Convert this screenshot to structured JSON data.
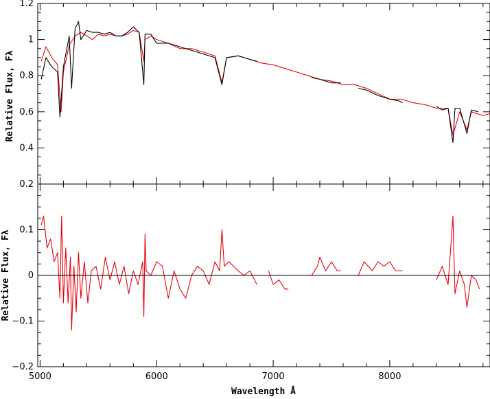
{
  "chart_data": [
    {
      "type": "line",
      "panel": "top",
      "ylabel": "Relative Flux, Fλ",
      "xlabel": "",
      "xlim": [
        4980,
        8860
      ],
      "ylim": [
        0.2,
        1.2
      ],
      "x_ticks": [
        5000,
        6000,
        7000,
        8000
      ],
      "y_ticks": [
        0.2,
        0.4,
        0.6,
        0.8,
        1,
        1.2
      ],
      "y_tick_labels": [
        "0.2",
        "0.4",
        "0.6",
        "0.8",
        "1",
        "1.2"
      ],
      "series": [
        {
          "color": "#e8000b",
          "x": [
            5010,
            5050,
            5100,
            5150,
            5180,
            5200,
            5250,
            5300,
            5350,
            5400,
            5450,
            5500,
            5550,
            5600,
            5650,
            5700,
            5750,
            5800,
            5850,
            5890,
            5900,
            5950,
            6000,
            6100,
            6200,
            6300,
            6400,
            6500,
            6560,
            6600,
            6700,
            6800,
            6900,
            7000,
            7100,
            7200,
            7300,
            7400,
            7500,
            7600,
            7700,
            7800,
            7900,
            8000,
            8100,
            8200,
            8300,
            8400,
            8500,
            8542,
            8600,
            8662,
            8700,
            8800,
            8860
          ],
          "y": [
            0.88,
            0.96,
            0.9,
            0.86,
            0.6,
            0.82,
            0.97,
            1.02,
            1.04,
            1.02,
            1.0,
            1.03,
            1.02,
            1.03,
            1.02,
            1.02,
            1.03,
            1.05,
            1.04,
            0.88,
            1.0,
            1.02,
            1.0,
            0.98,
            0.95,
            0.95,
            0.93,
            0.91,
            0.76,
            0.9,
            0.91,
            0.89,
            0.87,
            0.86,
            0.84,
            0.82,
            0.8,
            0.78,
            0.77,
            0.75,
            0.75,
            0.73,
            0.7,
            0.67,
            0.67,
            0.65,
            0.64,
            0.62,
            0.62,
            0.47,
            0.6,
            0.5,
            0.6,
            0.58,
            0.59
          ]
        },
        {
          "color": "#000000",
          "segments": [
            {
              "x": [
                5010,
                5050,
                5100,
                5150,
                5170,
                5200,
                5250,
                5270,
                5300,
                5330,
                5350,
                5400,
                5450,
                5500,
                5550,
                5600,
                5650,
                5700,
                5750,
                5800,
                5850,
                5890,
                5900,
                5950,
                6000,
                6100,
                6200,
                6300,
                6400,
                6500,
                6560,
                6600,
                6700,
                6800,
                6860
              ],
              "y": [
                0.78,
                0.9,
                0.85,
                0.82,
                0.57,
                0.85,
                1.02,
                0.73,
                1.06,
                1.1,
                1.0,
                1.05,
                1.04,
                1.04,
                1.03,
                1.04,
                1.02,
                1.02,
                1.04,
                1.07,
                1.04,
                0.75,
                1.03,
                1.03,
                0.98,
                0.98,
                0.96,
                0.94,
                0.92,
                0.9,
                0.75,
                0.9,
                0.91,
                0.89,
                0.88
              ]
            },
            {
              "x": [
                7330,
                7400,
                7500,
                7580
              ],
              "y": [
                0.79,
                0.78,
                0.76,
                0.76
              ]
            },
            {
              "x": [
                7730,
                7800,
                7900,
                8000,
                8080,
                8110
              ],
              "y": [
                0.73,
                0.72,
                0.69,
                0.67,
                0.66,
                0.65
              ]
            },
            {
              "x": [
                8400,
                8450,
                8500,
                8542,
                8560,
                8600,
                8662,
                8700,
                8760
              ],
              "y": [
                0.63,
                0.61,
                0.62,
                0.43,
                0.62,
                0.62,
                0.48,
                0.61,
                0.6
              ]
            }
          ]
        }
      ]
    },
    {
      "type": "line",
      "panel": "bottom",
      "ylabel": "Relative Flux, Fλ",
      "xlabel": "Wavelength Å",
      "xlim": [
        4980,
        8860
      ],
      "ylim": [
        -0.2,
        0.2
      ],
      "x_ticks": [
        5000,
        6000,
        7000,
        8000
      ],
      "x_tick_labels": [
        "5000",
        "6000",
        "7000",
        "8000"
      ],
      "y_ticks": [
        -0.2,
        -0.1,
        0,
        0.1
      ],
      "y_tick_labels": [
        "−0.2",
        "−0.1",
        "0",
        "0.1"
      ],
      "reference_line": 0,
      "series": [
        {
          "color": "#e8000b",
          "segments": [
            {
              "x": [
                5010,
                5030,
                5060,
                5090,
                5120,
                5150,
                5170,
                5185,
                5200,
                5220,
                5240,
                5260,
                5270,
                5290,
                5310,
                5330,
                5350,
                5380,
                5410,
                5440,
                5480,
                5520,
                5560,
                5600,
                5640,
                5680,
                5720,
                5760,
                5800,
                5840,
                5880,
                5890,
                5900,
                5910,
                5950,
                6000,
                6050,
                6100,
                6150,
                6200,
                6250,
                6300,
                6350,
                6400,
                6450,
                6500,
                6540,
                6560,
                6580,
                6620,
                6660,
                6700,
                6750,
                6800,
                6860
              ],
              "y": [
                0.11,
                0.13,
                0.06,
                0.08,
                0.03,
                0.05,
                -0.05,
                0.13,
                -0.06,
                0.06,
                -0.06,
                0.04,
                -0.12,
                0.02,
                -0.08,
                0.05,
                -0.05,
                0.03,
                -0.06,
                0.01,
                0.02,
                -0.03,
                0.04,
                -0.01,
                0.03,
                -0.02,
                0.02,
                -0.04,
                0.01,
                -0.02,
                0.03,
                -0.09,
                0.09,
                0.01,
                0.0,
                0.03,
                0.02,
                -0.05,
                0.01,
                -0.03,
                -0.05,
                0.0,
                0.02,
                0.01,
                -0.02,
                0.03,
                0.01,
                0.1,
                0.02,
                0.03,
                0.02,
                0.01,
                0.0,
                0.01,
                -0.02
              ]
            },
            {
              "x": [
                6960,
                7000,
                7050,
                7100,
                7130
              ],
              "y": [
                0.01,
                -0.02,
                -0.01,
                -0.03,
                -0.03
              ]
            },
            {
              "x": [
                7330,
                7380,
                7400,
                7450,
                7500,
                7550,
                7580
              ],
              "y": [
                0.0,
                0.02,
                0.04,
                0.01,
                0.03,
                0.01,
                0.01
              ]
            },
            {
              "x": [
                7730,
                7780,
                7850,
                7900,
                7950,
                8000,
                8050,
                8110
              ],
              "y": [
                0.0,
                0.03,
                0.01,
                0.03,
                0.02,
                0.03,
                0.01,
                0.01
              ]
            },
            {
              "x": [
                8400,
                8450,
                8500,
                8520,
                8542,
                8560,
                8600,
                8640,
                8662,
                8700,
                8740,
                8770
              ],
              "y": [
                -0.01,
                0.02,
                -0.02,
                0.05,
                0.13,
                -0.04,
                0.01,
                -0.02,
                -0.07,
                0.0,
                -0.01,
                -0.03
              ]
            }
          ]
        },
        {
          "color": "#000000",
          "name": "",
          "x": [
            4980,
            8860
          ],
          "y": [
            0,
            0
          ]
        }
      ]
    }
  ]
}
